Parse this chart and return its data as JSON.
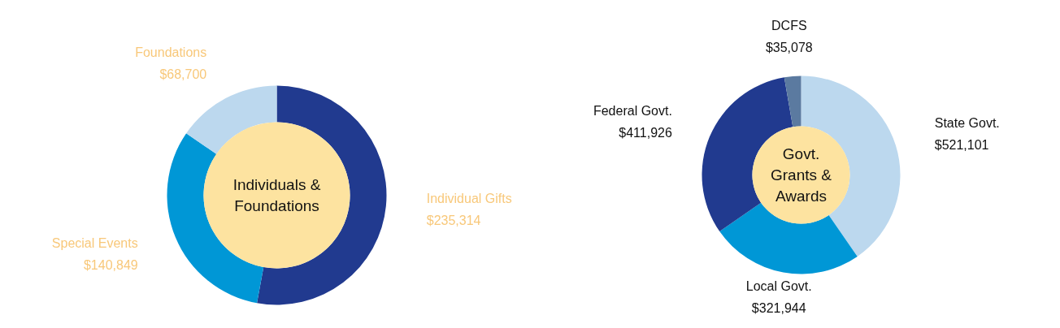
{
  "chart_data": [
    {
      "type": "donut",
      "title": "Individuals & Foundations",
      "categories": [
        "Individual Gifts",
        "Special Events",
        "Foundations"
      ],
      "values": [
        235314,
        140849,
        68700
      ],
      "colors": [
        "#213a8f",
        "#0097d6",
        "#bcd8ee"
      ],
      "value_labels": [
        "$235,314",
        "$140,849",
        "$68,700"
      ]
    },
    {
      "type": "donut",
      "title": "Govt. Grants & Awards",
      "categories": [
        "State Govt.",
        "Local Govt.",
        "Federal Govt.",
        "DCFS"
      ],
      "values": [
        521101,
        321944,
        411926,
        35078
      ],
      "colors": [
        "#bcd8ee",
        "#0097d6",
        "#213a8f",
        "#5b7aa0"
      ],
      "value_labels": [
        "$521,101",
        "$321,944",
        "$411,926",
        "$35,078"
      ]
    }
  ]
}
